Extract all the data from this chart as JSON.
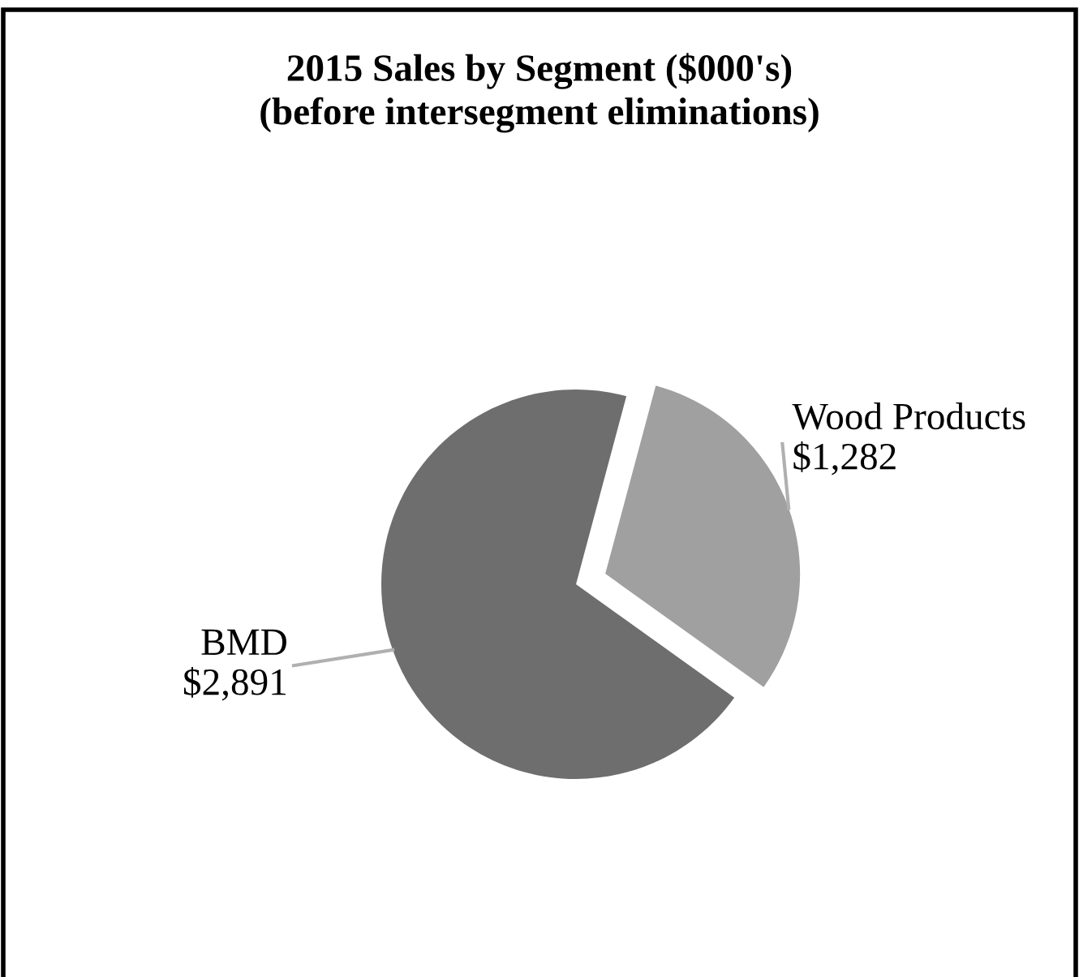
{
  "chart_data": {
    "type": "pie",
    "title": "2015 Sales by Segment ($000's)\n(before intersegment eliminations)",
    "categories": [
      "BMD",
      "Wood Products"
    ],
    "values": [
      2891,
      1282
    ],
    "colors": [
      "#6e6e6e",
      "#a0a0a0"
    ],
    "value_labels": [
      "$2,891",
      "$1,282"
    ]
  }
}
